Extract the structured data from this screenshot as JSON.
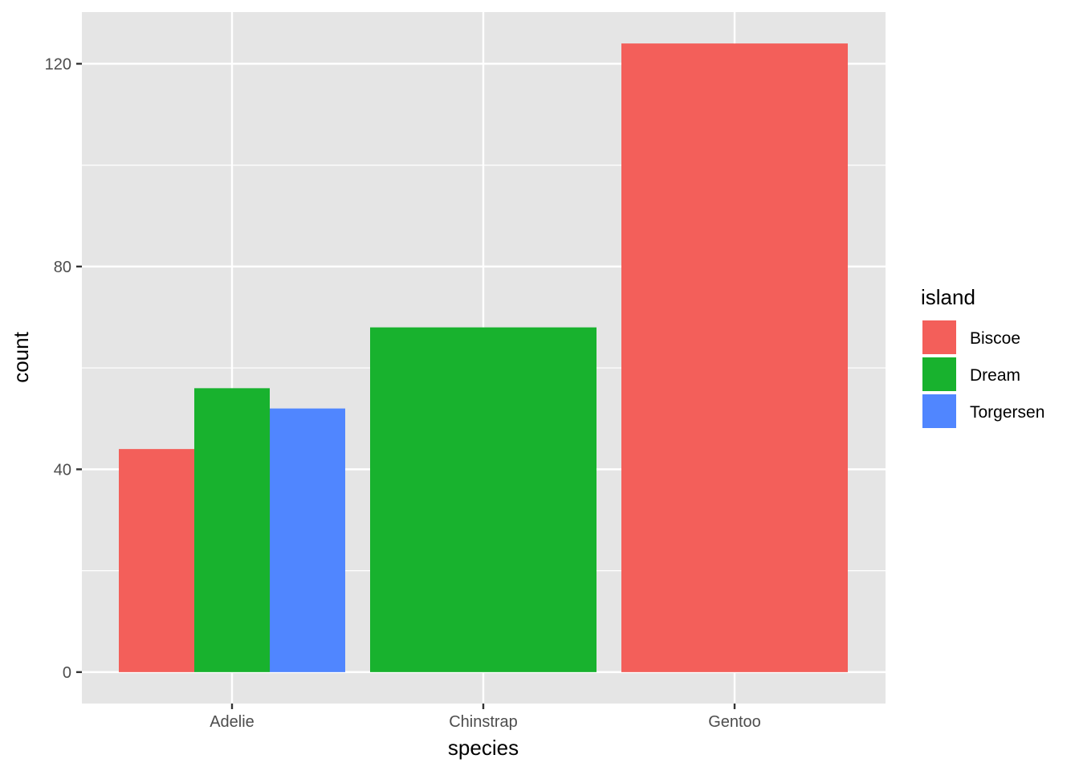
{
  "chart_data": {
    "type": "bar",
    "position": "dodge",
    "title": "",
    "xlabel": "species",
    "ylabel": "count",
    "categories": [
      "Adelie",
      "Chinstrap",
      "Gentoo"
    ],
    "yticks": [
      0,
      40,
      80,
      120
    ],
    "ylim": [
      -6.2,
      130.2
    ],
    "grid": true,
    "legend": {
      "title": "island",
      "placement": "right",
      "entries": [
        {
          "name": "Biscoe",
          "color": "#F35F5A"
        },
        {
          "name": "Dream",
          "color": "#18B22E"
        },
        {
          "name": "Torgersen",
          "color": "#5086FF"
        }
      ]
    },
    "bars": [
      {
        "category": "Adelie",
        "island": "Biscoe",
        "value": 44
      },
      {
        "category": "Adelie",
        "island": "Dream",
        "value": 56
      },
      {
        "category": "Adelie",
        "island": "Torgersen",
        "value": 52
      },
      {
        "category": "Chinstrap",
        "island": "Dream",
        "value": 68
      },
      {
        "category": "Gentoo",
        "island": "Biscoe",
        "value": 124
      }
    ],
    "panel_color": "#E5E5E5"
  }
}
